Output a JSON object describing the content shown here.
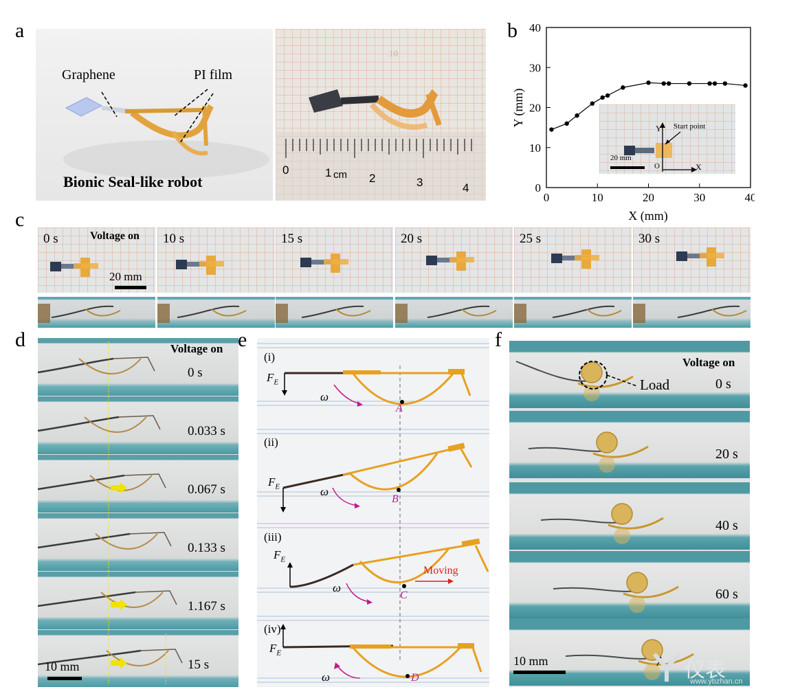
{
  "panel_labels": {
    "a": "a",
    "b": "b",
    "c": "c",
    "d": "d",
    "e": "e",
    "f": "f"
  },
  "panel_a": {
    "graphene_label": "Graphene",
    "pi_film_label": "PI film",
    "title": "Bionic Seal-like robot",
    "ruler_labels": [
      "0",
      "1",
      "cm",
      "2",
      "3",
      "4"
    ],
    "paper_mark": "10"
  },
  "panel_b": {
    "inset_y": "Y",
    "inset_x": "X",
    "inset_o": "O",
    "inset_start": "Start point",
    "inset_scale": "20 mm"
  },
  "panel_c": {
    "times": [
      "0 s",
      "10 s",
      "15 s",
      "20 s",
      "25 s",
      "30 s"
    ],
    "voltage": "Voltage on",
    "scale": "20 mm"
  },
  "panel_d": {
    "voltage": "Voltage on",
    "times": [
      "0 s",
      "0.033 s",
      "0.067 s",
      "0.133 s",
      "1.167 s",
      "15 s"
    ],
    "scale": "10 mm"
  },
  "panel_e": {
    "steps": [
      "(i)",
      "(ii)",
      "(iii)",
      "(iv)"
    ],
    "points": [
      "A",
      "B",
      "C",
      "D"
    ],
    "force": "F",
    "force_sub": "E",
    "omega": "ω",
    "moving": "Moving"
  },
  "panel_f": {
    "voltage": "Voltage on",
    "load": "Load",
    "times": [
      "0 s",
      "20 s",
      "40 s",
      "60 s",
      "7"
    ],
    "scale": "10 mm"
  },
  "watermark": {
    "text": "仪表",
    "url": "www.ybzhan.cn"
  },
  "chart_data": {
    "type": "scatter",
    "xlabel": "X (mm)",
    "ylabel": "Y (mm)",
    "xlim": [
      0,
      40
    ],
    "ylim": [
      0,
      40
    ],
    "xticks": [
      0,
      10,
      20,
      30,
      40
    ],
    "yticks": [
      0,
      10,
      20,
      30,
      40
    ],
    "x": [
      1,
      4,
      6,
      9,
      11,
      12,
      15,
      20,
      23,
      24,
      28,
      32,
      33,
      35,
      39
    ],
    "y": [
      14.5,
      16,
      18,
      21,
      22.5,
      23,
      25,
      26.2,
      26,
      26,
      26,
      26,
      26,
      26,
      25.5
    ],
    "grid": false,
    "marker_color": "#000000"
  },
  "colors": {
    "orange": "#e8a020",
    "teal": "#4e9aa3",
    "magenta": "#c21a8c",
    "red": "#e0201c",
    "yellow": "#f2e200"
  }
}
